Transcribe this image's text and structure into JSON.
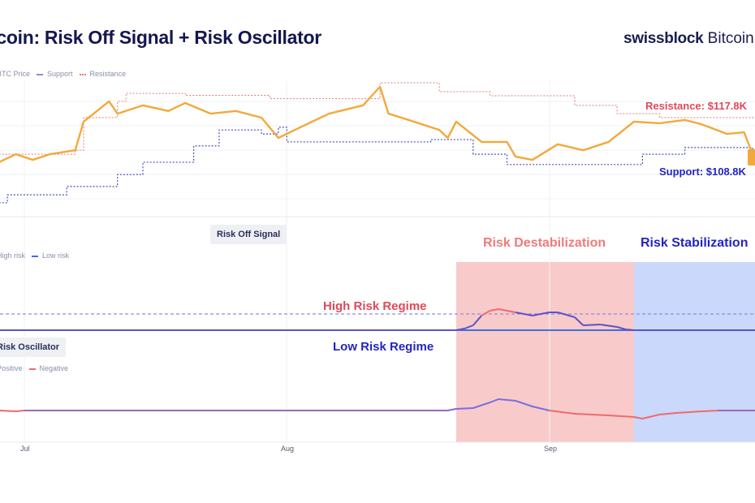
{
  "header": {
    "title": "tcoin: Risk Off Signal + Risk Oscillator",
    "brand_bold": "swissblock",
    "brand_rest": " Bitcoin V"
  },
  "colors": {
    "price": "#f2a93b",
    "support": "#4a4fb8",
    "resistance": "#e07a7a",
    "low_risk": "#3f6fe0",
    "high_risk": "#8a90d8",
    "positive": "#7a6ee0",
    "negative": "#ef6b6b",
    "destabilization_bg": "#f9caca",
    "stabilization_bg": "#c9d8fb",
    "resistance_label": "#e0485a",
    "support_label": "#2222c8",
    "regime_high": "#e0485a",
    "regime_low": "#2424c8"
  },
  "chart_data": [
    {
      "type": "line",
      "title": "",
      "legend": [
        "BTC Price",
        "Support",
        "Resistance"
      ],
      "legend_position": "top-left",
      "x_ticks": [
        "Jul",
        "Aug",
        "Sep"
      ],
      "grid": true,
      "annotations": {
        "resistance": "Resistance: $117.8K",
        "support": "Support: $108.8K"
      },
      "series": [
        {
          "name": "BTC Price",
          "style": "solid",
          "points": [
            [
              "Jun 28",
              104.4
            ],
            [
              "Jun 30",
              106.8
            ],
            [
              "Jul 2",
              105.1
            ],
            [
              "Jul 4",
              106.8
            ],
            [
              "Jul 7",
              108.0
            ],
            [
              "Jul 8",
              116.6
            ],
            [
              "Jul 11",
              122.7
            ],
            [
              "Jul 12",
              119.0
            ],
            [
              "Jul 15",
              121.5
            ],
            [
              "Jul 18",
              119.8
            ],
            [
              "Jul 20",
              122.2
            ],
            [
              "Jul 23",
              119.0
            ],
            [
              "Jul 26",
              119.8
            ],
            [
              "Jul 29",
              117.8
            ],
            [
              "Jul 31",
              111.7
            ],
            [
              "Aug 3",
              115.4
            ],
            [
              "Aug 6",
              119.0
            ],
            [
              "Aug 10",
              121.5
            ],
            [
              "Aug 12",
              127.1
            ],
            [
              "Aug 13",
              119.0
            ],
            [
              "Aug 16",
              116.6
            ],
            [
              "Aug 19",
              114.1
            ],
            [
              "Aug 20",
              111.7
            ],
            [
              "Aug 21",
              116.6
            ],
            [
              "Aug 24",
              110.5
            ],
            [
              "Aug 27",
              110.5
            ],
            [
              "Aug 28",
              106.1
            ],
            [
              "Aug 30",
              105.1
            ],
            [
              "Sep 2",
              109.8
            ],
            [
              "Sep 5",
              108.0
            ],
            [
              "Sep 8",
              110.5
            ],
            [
              "Sep 11",
              116.6
            ],
            [
              "Sep 14",
              116.1
            ],
            [
              "Sep 17",
              117.1
            ],
            [
              "Sep 19",
              115.8
            ],
            [
              "Sep 22",
              112.9
            ],
            [
              "Sep 24",
              113.4
            ],
            [
              "Sep 25",
              106.8
            ],
            [
              "Sep 26",
              106.6
            ]
          ]
        },
        {
          "name": "Support",
          "style": "dotted",
          "points": [
            [
              "Jun 28",
              92.2
            ],
            [
              "Jun 29",
              94.6
            ],
            [
              "Jul 6",
              97.1
            ],
            [
              "Jul 12",
              100.7
            ],
            [
              "Jul 15",
              104.4
            ],
            [
              "Jul 21",
              109.3
            ],
            [
              "Jul 24",
              114.1
            ],
            [
              "Jul 29",
              112.9
            ],
            [
              "Jul 31",
              114.9
            ],
            [
              "Aug 1",
              110.5
            ],
            [
              "Aug 18",
              111.2
            ],
            [
              "Aug 23",
              106.8
            ],
            [
              "Aug 27",
              103.7
            ],
            [
              "Sep 8",
              103.7
            ],
            [
              "Sep 12",
              106.8
            ],
            [
              "Sep 17",
              108.8
            ],
            [
              "Sep 24",
              108.8
            ],
            [
              "Sep 25",
              106.8
            ]
          ]
        },
        {
          "name": "Resistance",
          "style": "dotted",
          "points": [
            [
              "Jun 28",
              106.8
            ],
            [
              "Jul 7",
              108.0
            ],
            [
              "Jul 8",
              117.8
            ],
            [
              "Jul 12",
              122.7
            ],
            [
              "Jul 13",
              125.1
            ],
            [
              "Jul 20",
              124.5
            ],
            [
              "Jul 30",
              123.5
            ],
            [
              "Aug 12",
              128.3
            ],
            [
              "Aug 18",
              128.3
            ],
            [
              "Aug 19",
              125.6
            ],
            [
              "Aug 25",
              124.4
            ],
            [
              "Sep 4",
              121.5
            ],
            [
              "Sep 9",
              119.0
            ],
            [
              "Sep 14",
              117.8
            ],
            [
              "Sep 26",
              117.8
            ]
          ]
        }
      ]
    },
    {
      "type": "line",
      "title": "Risk Off Signal",
      "legend": [
        "High risk",
        "Low risk"
      ],
      "legend_position": "top-left",
      "regimes": {
        "high": "High Risk Regime",
        "low": "Low Risk Regime"
      },
      "thresholds": {
        "high_risk": 1,
        "low_risk": 0
      },
      "series": [
        {
          "name": "Risk Off Signal",
          "points": [
            [
              "Jun 28",
              0
            ],
            [
              "Aug 21",
              0
            ],
            [
              "Aug 22",
              0.1
            ],
            [
              "Aug 23",
              0.3
            ],
            [
              "Aug 24",
              0.9
            ],
            [
              "Aug 25",
              1.2
            ],
            [
              "Aug 26",
              1.3
            ],
            [
              "Aug 28",
              1.1
            ],
            [
              "Aug 30",
              0.9
            ],
            [
              "Sep 1",
              1.1
            ],
            [
              "Sep 2",
              1.1
            ],
            [
              "Sep 4",
              0.8
            ],
            [
              "Sep 5",
              0.3
            ],
            [
              "Sep 7",
              0.35
            ],
            [
              "Sep 9",
              0.2
            ],
            [
              "Sep 10",
              0.05
            ],
            [
              "Sep 11",
              0
            ],
            [
              "Sep 26",
              0
            ]
          ]
        }
      ]
    },
    {
      "type": "line",
      "title": "Risk Oscillator",
      "legend": [
        "Positive",
        "Negative"
      ],
      "legend_position": "top-left",
      "x_ticks": [
        "Jul",
        "Aug",
        "Sep"
      ],
      "series": [
        {
          "name": "Risk Oscillator",
          "points": [
            [
              "Jun 28",
              0
            ],
            [
              "Jun 30",
              -0.1
            ],
            [
              "Jul 1",
              0
            ],
            [
              "Aug 20",
              0
            ],
            [
              "Aug 21",
              0.2
            ],
            [
              "Aug 23",
              0.3
            ],
            [
              "Aug 25",
              1.0
            ],
            [
              "Aug 26",
              1.4
            ],
            [
              "Aug 28",
              1.2
            ],
            [
              "Aug 30",
              0.5
            ],
            [
              "Sep 1",
              0
            ],
            [
              "Sep 4",
              -0.4
            ],
            [
              "Sep 8",
              -0.6
            ],
            [
              "Sep 11",
              -0.8
            ],
            [
              "Sep 12",
              -1.0
            ],
            [
              "Sep 14",
              -0.5
            ],
            [
              "Sep 16",
              -0.3
            ],
            [
              "Sep 19",
              -0.1
            ],
            [
              "Sep 21",
              0
            ],
            [
              "Sep 26",
              0
            ]
          ]
        }
      ]
    }
  ],
  "regions": [
    {
      "label": "Risk Destabilization",
      "start": "Aug 21",
      "end": "Sep 11"
    },
    {
      "label": "Risk Stabilization",
      "start": "Sep 11",
      "end": "Sep 26"
    }
  ]
}
